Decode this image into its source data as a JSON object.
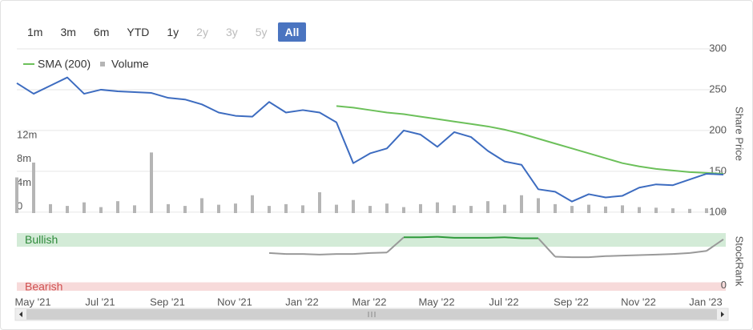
{
  "range_buttons": [
    {
      "label": "1m",
      "state": "enabled"
    },
    {
      "label": "3m",
      "state": "enabled"
    },
    {
      "label": "6m",
      "state": "enabled"
    },
    {
      "label": "YTD",
      "state": "enabled"
    },
    {
      "label": "1y",
      "state": "enabled"
    },
    {
      "label": "2y",
      "state": "disabled"
    },
    {
      "label": "3y",
      "state": "disabled"
    },
    {
      "label": "5y",
      "state": "disabled"
    },
    {
      "label": "All",
      "state": "selected"
    }
  ],
  "chart_data": [
    {
      "type": "line",
      "y_title": "Share Price",
      "categories": [
        "May '21",
        null,
        null,
        null,
        "Jul '21",
        null,
        null,
        null,
        "Sep '21",
        null,
        null,
        null,
        "Nov '21",
        null,
        null,
        null,
        "Jan '22",
        null,
        null,
        null,
        "Mar '22",
        null,
        null,
        null,
        "May '22",
        null,
        null,
        null,
        "Jul '22",
        null,
        null,
        null,
        "Sep '22",
        null,
        null,
        null,
        "Nov '22",
        null,
        null,
        null,
        "Jan '23",
        null,
        null
      ],
      "series": [
        {
          "color": "#3d6cc0",
          "values": [
            258,
            245,
            255,
            265,
            245,
            250,
            248,
            247,
            246,
            240,
            238,
            232,
            222,
            218,
            217,
            235,
            222,
            225,
            222,
            210,
            160,
            172,
            178,
            200,
            195,
            180,
            198,
            192,
            175,
            162,
            158,
            128,
            125,
            113,
            122,
            118,
            120,
            130,
            134,
            133,
            140,
            147,
            146
          ]
        },
        {
          "name": "SMA (200)",
          "color": "#6cc05a",
          "values": [
            null,
            null,
            null,
            null,
            null,
            null,
            null,
            null,
            null,
            null,
            null,
            null,
            null,
            null,
            null,
            null,
            null,
            null,
            null,
            230,
            228,
            225,
            222,
            220,
            217,
            214,
            211,
            208,
            205,
            201,
            196,
            190,
            184,
            178,
            172,
            166,
            160,
            156,
            153,
            151,
            149,
            148,
            147
          ]
        },
        {
          "name": "Volume",
          "type": "bar",
          "axis": "y2",
          "color": "#b5b5b5",
          "values": [
            6000000,
            8500000,
            1500000,
            1200000,
            1800000,
            1000000,
            2000000,
            1300000,
            10200000,
            1500000,
            1200000,
            2500000,
            1400000,
            1600000,
            3000000,
            1200000,
            1500000,
            1300000,
            3500000,
            1400000,
            2200000,
            1200000,
            1600000,
            1000000,
            1500000,
            1800000,
            1300000,
            1200000,
            2000000,
            1400000,
            3000000,
            2500000,
            1500000,
            1200000,
            1400000,
            1100000,
            1300000,
            1000000,
            900000,
            800000,
            700000,
            800000,
            600000
          ]
        }
      ],
      "ylim": [
        92,
        300
      ],
      "yticks": [
        100,
        150,
        200,
        250,
        300
      ],
      "y2lim": [
        0,
        12000000
      ],
      "y2ticks": [
        {
          "value": 0,
          "label": "0"
        },
        {
          "value": 4000000,
          "label": "4m"
        },
        {
          "value": 8000000,
          "label": "8m"
        },
        {
          "value": 12000000,
          "label": "12m"
        }
      ],
      "grid": true
    },
    {
      "type": "line",
      "y_title": "StockRank",
      "series": [
        {
          "color": "#999999",
          "band_color": "#2e9a3a",
          "values": [
            null,
            null,
            null,
            null,
            null,
            null,
            null,
            null,
            null,
            null,
            null,
            null,
            null,
            null,
            null,
            62,
            60,
            60,
            59,
            60,
            60,
            62,
            63,
            92,
            92,
            93,
            91,
            91,
            91,
            92,
            90,
            90,
            55,
            54,
            54,
            56,
            57,
            58,
            59,
            60,
            62,
            66,
            88
          ]
        }
      ],
      "bands": [
        {
          "label": "Bullish",
          "range": [
            74,
            100
          ],
          "color": "#d3ebd7",
          "text_color": "#2e8a3a"
        },
        {
          "label": "Bearish",
          "range": [
            -10,
            6
          ],
          "color": "#f7dada",
          "text_color": "#d05050"
        }
      ],
      "ylim": [
        -10,
        100
      ],
      "yticks": [
        0
      ]
    }
  ]
}
